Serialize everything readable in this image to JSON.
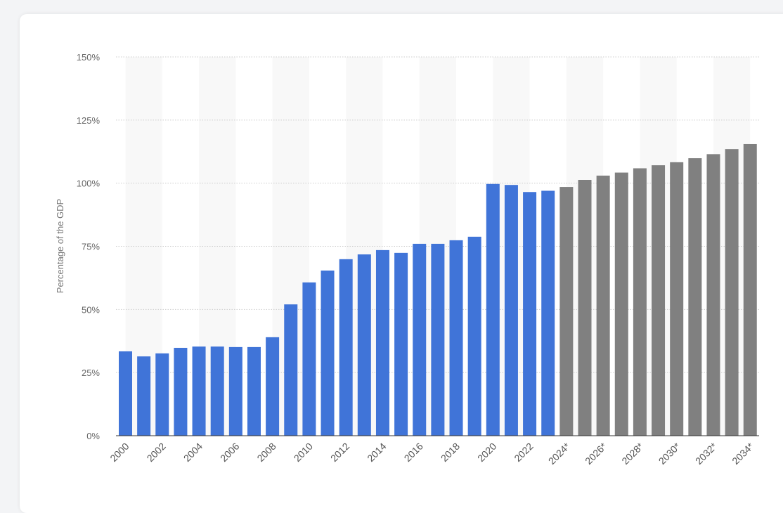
{
  "chart_data": {
    "type": "bar",
    "title": "",
    "xlabel": "",
    "ylabel": "Percentage of the GDP",
    "ylim": [
      0,
      150
    ],
    "yticks": [
      "0%",
      "25%",
      "50%",
      "75%",
      "100%",
      "125%",
      "150%"
    ],
    "ytick_values": [
      0,
      25,
      50,
      75,
      100,
      125,
      150
    ],
    "grid": true,
    "categories": [
      "2000",
      "2001",
      "2002",
      "2003",
      "2004",
      "2005",
      "2006",
      "2007",
      "2008",
      "2009",
      "2010",
      "2011",
      "2012",
      "2013",
      "2014",
      "2015",
      "2016",
      "2017",
      "2018",
      "2019",
      "2020",
      "2021",
      "2022",
      "2023",
      "2024*",
      "2025*",
      "2026*",
      "2027*",
      "2028*",
      "2029*",
      "2030*",
      "2031*",
      "2032*",
      "2033*",
      "2034*"
    ],
    "values": [
      33.4,
      31.4,
      32.6,
      34.8,
      35.3,
      35.3,
      35.1,
      35.1,
      39.0,
      52.0,
      60.7,
      65.4,
      69.9,
      71.8,
      73.5,
      72.4,
      76.0,
      76.0,
      77.4,
      78.8,
      99.7,
      99.3,
      96.5,
      97.0,
      98.5,
      101.3,
      103.0,
      104.2,
      105.9,
      107.1,
      108.3,
      109.9,
      111.5,
      113.5,
      115.5
    ],
    "forecast_from_index": 24,
    "colors": {
      "actual": "#4074d8",
      "forecast": "#808080",
      "band": "#f8f8f8",
      "grid": "#cccccc"
    }
  }
}
